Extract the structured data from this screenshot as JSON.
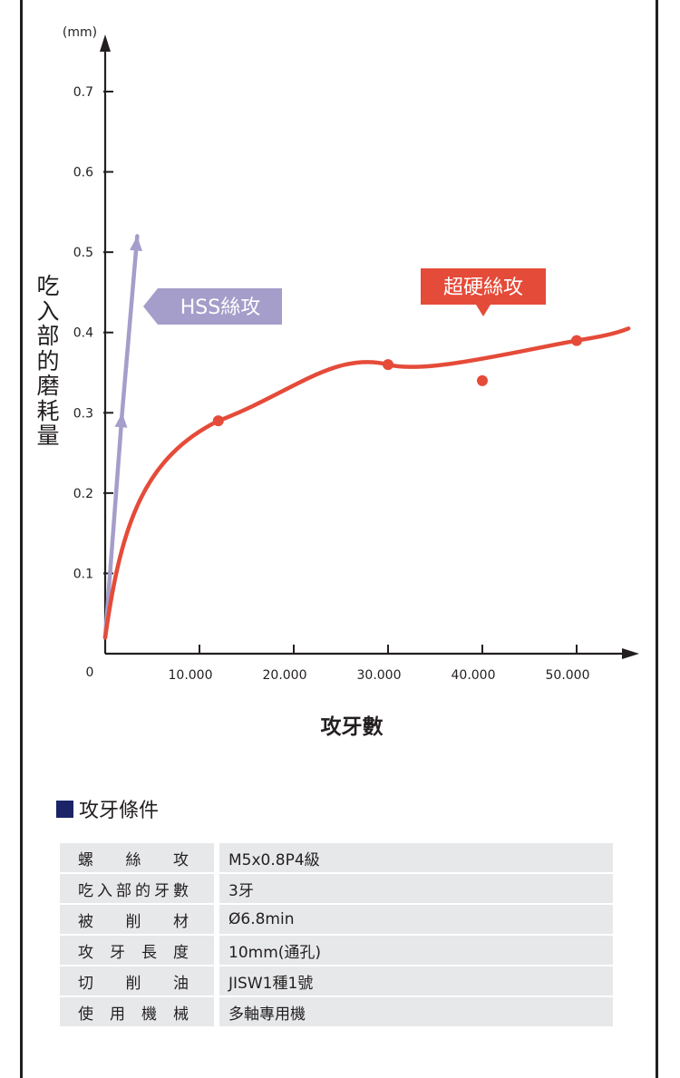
{
  "chart_data": {
    "type": "line",
    "unit_label": "(mm)",
    "ylabel": "吃入部的磨耗量",
    "xlabel": "攻牙數",
    "y_ticks": [
      "0.1",
      "0.2",
      "0.3",
      "0.4",
      "0.5",
      "0.6",
      "0.7"
    ],
    "y_tick_values": [
      0.1,
      0.2,
      0.3,
      0.4,
      0.5,
      0.6,
      0.7
    ],
    "x_ticks": [
      "10.000",
      "20.000",
      "30.000",
      "40.000",
      "50.000"
    ],
    "x_tick_values": [
      10000,
      20000,
      30000,
      40000,
      50000
    ],
    "origin_label": "0",
    "xlim": [
      0,
      56000
    ],
    "ylim": [
      0,
      0.7
    ],
    "series": [
      {
        "name": "HSS絲攻",
        "color": "#a59dca",
        "x": [
          0,
          1800,
          3400
        ],
        "y": [
          0.02,
          0.3,
          0.52
        ]
      },
      {
        "name": "超硬絲攻",
        "color": "#e54b39",
        "x": [
          0,
          12000,
          30000,
          50000,
          55500
        ],
        "y": [
          0.02,
          0.29,
          0.36,
          0.39,
          0.405
        ],
        "markers_x": [
          12000,
          30000,
          50000
        ],
        "markers_y": [
          0.29,
          0.36,
          0.39
        ]
      }
    ],
    "outlier": {
      "x": 40000,
      "y": 0.34,
      "color": "#e54b39"
    },
    "callouts": [
      {
        "series": "HSS絲攻",
        "text": "HSS絲攻",
        "bg": "#a59dca"
      },
      {
        "series": "超硬絲攻",
        "text": "超硬絲攻",
        "bg": "#e54b39"
      }
    ]
  },
  "conditions": {
    "title": "攻牙條件",
    "accent": "#1b2466",
    "rows": [
      {
        "key": "螺絲攻",
        "value": "M5x0.8P4級"
      },
      {
        "key": "吃入部的牙數",
        "value": "3牙"
      },
      {
        "key": "被削材",
        "value": "Ø6.8min"
      },
      {
        "key": "攻牙長度",
        "value": "10mm(通孔)"
      },
      {
        "key": "切削油",
        "value": "JISW1種1號"
      },
      {
        "key": "使用機械",
        "value": "多軸專用機"
      }
    ]
  }
}
